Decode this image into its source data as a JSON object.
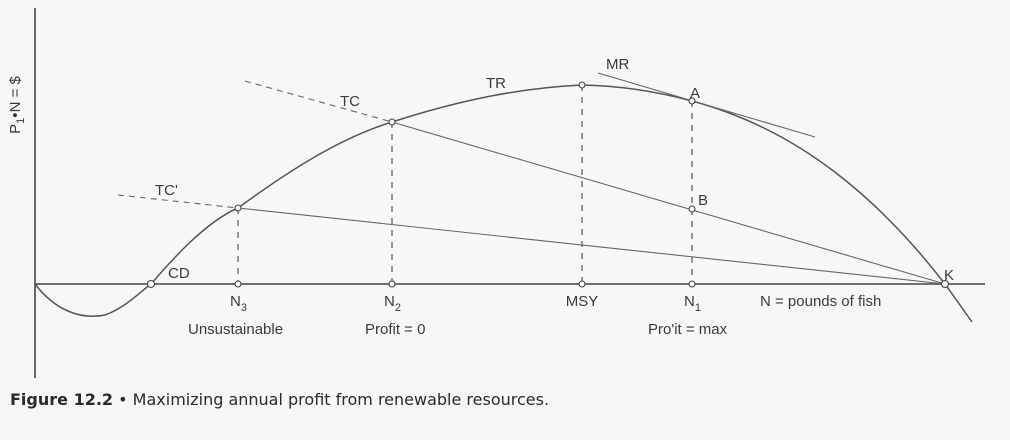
{
  "diagram": {
    "y_axis_label_parts": [
      "P",
      "1",
      "•N = $"
    ],
    "x_axis_label": "N = pounds of fish",
    "curve_labels": {
      "tr": "TR",
      "tc": "TC",
      "tc_prime": "TC'",
      "mr": "MR",
      "cd": "CD",
      "k": "K",
      "a": "A",
      "b": "B"
    },
    "ticks": {
      "n3": {
        "main": "N",
        "sub": "3"
      },
      "n2": {
        "main": "N",
        "sub": "2"
      },
      "msy": "MSY",
      "n1": {
        "main": "N",
        "sub": "1"
      }
    },
    "region_labels": {
      "unsustainable": "Unsustainable",
      "profit_zero": "Profit = 0",
      "profit_max": "Pro'it = max"
    }
  },
  "caption": {
    "figure_number": "Figure 12.2",
    "bullet": "•",
    "text": "Maximizing annual profit from renewable resources."
  }
}
